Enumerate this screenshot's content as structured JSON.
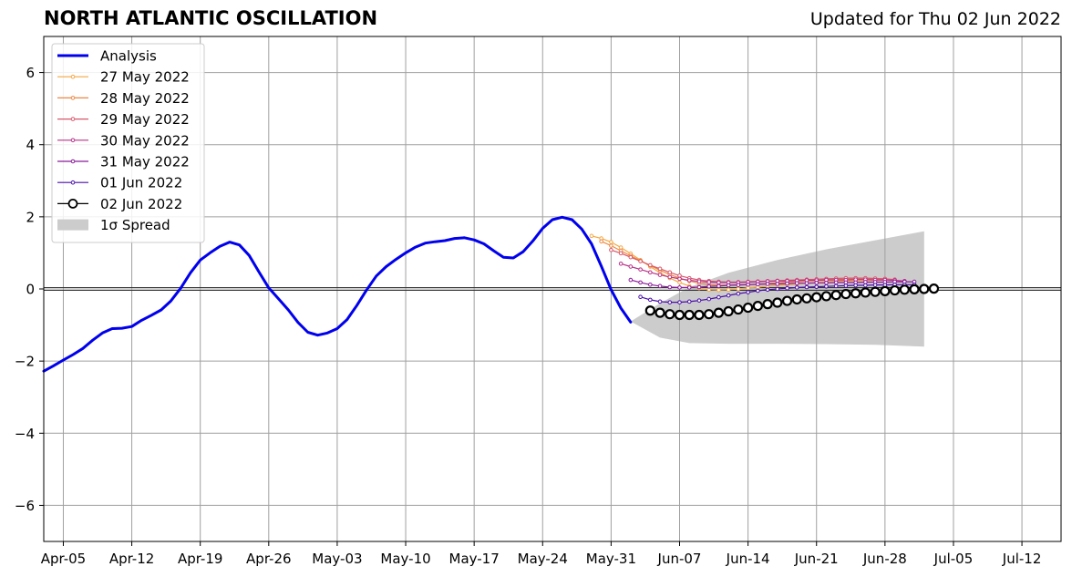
{
  "title": "NORTH ATLANTIC OSCILLATION",
  "updated": "Updated for Thu 02 Jun 2022",
  "chart_data": {
    "type": "line",
    "title": "NORTH ATLANTIC OSCILLATION",
    "subtitle": "Updated for Thu 02 Jun 2022",
    "x_start_date": "2022-04-03",
    "x_ticks": [
      {
        "label": "Apr-05",
        "date": "2022-04-05"
      },
      {
        "label": "Apr-12",
        "date": "2022-04-12"
      },
      {
        "label": "Apr-19",
        "date": "2022-04-19"
      },
      {
        "label": "Apr-26",
        "date": "2022-04-26"
      },
      {
        "label": "May-03",
        "date": "2022-05-03"
      },
      {
        "label": "May-10",
        "date": "2022-05-10"
      },
      {
        "label": "May-17",
        "date": "2022-05-17"
      },
      {
        "label": "May-24",
        "date": "2022-05-24"
      },
      {
        "label": "May-31",
        "date": "2022-05-31"
      },
      {
        "label": "Jun-07",
        "date": "2022-06-07"
      },
      {
        "label": "Jun-14",
        "date": "2022-06-14"
      },
      {
        "label": "Jun-21",
        "date": "2022-06-21"
      },
      {
        "label": "Jun-28",
        "date": "2022-06-28"
      },
      {
        "label": "Jul-05",
        "date": "2022-07-05"
      },
      {
        "label": "Jul-12",
        "date": "2022-07-12"
      }
    ],
    "xlim": [
      "2022-04-03",
      "2022-07-16"
    ],
    "ylim": [
      -7,
      7
    ],
    "y_ticks": [
      {
        "value": -6,
        "label": "−6"
      },
      {
        "value": -4,
        "label": "−4"
      },
      {
        "value": -2,
        "label": "−2"
      },
      {
        "value": 0,
        "label": "0"
      },
      {
        "value": 2,
        "label": "2"
      },
      {
        "value": 4,
        "label": "4"
      },
      {
        "value": 6,
        "label": "6"
      }
    ],
    "grid": true,
    "legend_position": "top-left",
    "spread": {
      "name": "1σ Spread",
      "color": "#cccccc",
      "x": [
        "2022-06-02",
        "2022-06-05",
        "2022-06-08",
        "2022-06-12",
        "2022-06-17",
        "2022-06-22",
        "2022-06-27",
        "2022-07-02"
      ],
      "upper": [
        -0.9,
        -0.4,
        0.05,
        0.45,
        0.8,
        1.1,
        1.35,
        1.6
      ],
      "lower": [
        -0.9,
        -1.35,
        -1.5,
        -1.52,
        -1.52,
        -1.53,
        -1.55,
        -1.6
      ]
    },
    "series": [
      {
        "name": "Analysis",
        "color": "#0000ee",
        "width": 3,
        "marker": "none",
        "x": [
          "2022-04-03",
          "2022-04-04",
          "2022-04-05",
          "2022-04-06",
          "2022-04-07",
          "2022-04-08",
          "2022-04-09",
          "2022-04-10",
          "2022-04-11",
          "2022-04-12",
          "2022-04-13",
          "2022-04-14",
          "2022-04-15",
          "2022-04-16",
          "2022-04-17",
          "2022-04-18",
          "2022-04-19",
          "2022-04-20",
          "2022-04-21",
          "2022-04-22",
          "2022-04-23",
          "2022-04-24",
          "2022-04-25",
          "2022-04-26",
          "2022-04-27",
          "2022-04-28",
          "2022-04-29",
          "2022-04-30",
          "2022-05-01",
          "2022-05-02",
          "2022-05-03",
          "2022-05-04",
          "2022-05-05",
          "2022-05-06",
          "2022-05-07",
          "2022-05-08",
          "2022-05-09",
          "2022-05-10",
          "2022-05-11",
          "2022-05-12",
          "2022-05-13",
          "2022-05-14",
          "2022-05-15",
          "2022-05-16",
          "2022-05-17",
          "2022-05-18",
          "2022-05-19",
          "2022-05-20",
          "2022-05-21",
          "2022-05-22",
          "2022-05-23",
          "2022-05-24",
          "2022-05-25",
          "2022-05-26",
          "2022-05-27",
          "2022-05-28",
          "2022-05-29",
          "2022-05-30",
          "2022-05-31",
          "2022-06-01",
          "2022-06-02"
        ],
        "y": [
          -2.28,
          -2.13,
          -1.97,
          -1.82,
          -1.65,
          -1.42,
          -1.22,
          -1.1,
          -1.09,
          -1.04,
          -0.87,
          -0.73,
          -0.58,
          -0.33,
          0.02,
          0.45,
          0.8,
          1.0,
          1.18,
          1.3,
          1.22,
          0.93,
          0.47,
          0.03,
          -0.27,
          -0.58,
          -0.93,
          -1.2,
          -1.28,
          -1.22,
          -1.1,
          -0.85,
          -0.46,
          -0.03,
          0.36,
          0.62,
          0.82,
          1.0,
          1.16,
          1.27,
          1.31,
          1.34,
          1.4,
          1.42,
          1.36,
          1.25,
          1.06,
          0.88,
          0.86,
          1.03,
          1.33,
          1.68,
          1.92,
          1.99,
          1.92,
          1.66,
          1.25,
          0.63,
          -0.02,
          -0.53,
          -0.92
        ]
      },
      {
        "name": "27 May 2022",
        "color": "#f4a742",
        "width": 1.2,
        "marker": "dot",
        "x": [
          "2022-05-29",
          "2022-05-30",
          "2022-05-31",
          "2022-06-01",
          "2022-06-02",
          "2022-06-03",
          "2022-06-04",
          "2022-06-05",
          "2022-06-06",
          "2022-06-07",
          "2022-06-08",
          "2022-06-09",
          "2022-06-10",
          "2022-06-11",
          "2022-06-12",
          "2022-06-13",
          "2022-06-14",
          "2022-06-15",
          "2022-06-16",
          "2022-06-17",
          "2022-06-18",
          "2022-06-19",
          "2022-06-20",
          "2022-06-21",
          "2022-06-22",
          "2022-06-23",
          "2022-06-24",
          "2022-06-25",
          "2022-06-26",
          "2022-06-27",
          "2022-06-28"
        ],
        "y": [
          1.47,
          1.4,
          1.3,
          1.15,
          0.98,
          0.8,
          0.62,
          0.45,
          0.3,
          0.18,
          0.08,
          0.02,
          -0.02,
          -0.03,
          -0.02,
          0.0,
          0.03,
          0.05,
          0.08,
          0.1,
          0.12,
          0.14,
          0.16,
          0.18,
          0.2,
          0.21,
          0.22,
          0.23,
          0.24,
          0.24,
          0.25
        ]
      },
      {
        "name": "28 May 2022",
        "color": "#ee8743",
        "width": 1.2,
        "marker": "dot",
        "x": [
          "2022-05-30",
          "2022-05-31",
          "2022-06-01",
          "2022-06-02",
          "2022-06-03",
          "2022-06-04",
          "2022-06-05",
          "2022-06-06",
          "2022-06-07",
          "2022-06-08",
          "2022-06-09",
          "2022-06-10",
          "2022-06-11",
          "2022-06-12",
          "2022-06-13",
          "2022-06-14",
          "2022-06-15",
          "2022-06-16",
          "2022-06-17",
          "2022-06-18",
          "2022-06-19",
          "2022-06-20",
          "2022-06-21",
          "2022-06-22",
          "2022-06-23",
          "2022-06-24",
          "2022-06-25",
          "2022-06-26",
          "2022-06-27",
          "2022-06-28"
        ],
        "y": [
          1.32,
          1.2,
          1.06,
          0.92,
          0.78,
          0.65,
          0.52,
          0.4,
          0.3,
          0.22,
          0.16,
          0.12,
          0.1,
          0.1,
          0.11,
          0.12,
          0.13,
          0.15,
          0.17,
          0.19,
          0.2,
          0.22,
          0.23,
          0.25,
          0.26,
          0.27,
          0.28,
          0.28,
          0.28,
          0.27
        ]
      },
      {
        "name": "29 May 2022",
        "color": "#d8576b",
        "width": 1.2,
        "marker": "dot",
        "x": [
          "2022-05-31",
          "2022-06-01",
          "2022-06-02",
          "2022-06-03",
          "2022-06-04",
          "2022-06-05",
          "2022-06-06",
          "2022-06-07",
          "2022-06-08",
          "2022-06-09",
          "2022-06-10",
          "2022-06-11",
          "2022-06-12",
          "2022-06-13",
          "2022-06-14",
          "2022-06-15",
          "2022-06-16",
          "2022-06-17",
          "2022-06-18",
          "2022-06-19",
          "2022-06-20",
          "2022-06-21",
          "2022-06-22",
          "2022-06-23",
          "2022-06-24",
          "2022-06-25",
          "2022-06-26",
          "2022-06-27",
          "2022-06-28",
          "2022-06-29"
        ],
        "y": [
          1.08,
          0.99,
          0.88,
          0.77,
          0.66,
          0.56,
          0.46,
          0.37,
          0.3,
          0.25,
          0.22,
          0.2,
          0.19,
          0.19,
          0.2,
          0.21,
          0.22,
          0.23,
          0.24,
          0.25,
          0.26,
          0.27,
          0.28,
          0.29,
          0.3,
          0.3,
          0.3,
          0.29,
          0.28,
          0.26
        ]
      },
      {
        "name": "30 May 2022",
        "color": "#b83289",
        "width": 1.2,
        "marker": "dot",
        "x": [
          "2022-06-01",
          "2022-06-02",
          "2022-06-03",
          "2022-06-04",
          "2022-06-05",
          "2022-06-06",
          "2022-06-07",
          "2022-06-08",
          "2022-06-09",
          "2022-06-10",
          "2022-06-11",
          "2022-06-12",
          "2022-06-13",
          "2022-06-14",
          "2022-06-15",
          "2022-06-16",
          "2022-06-17",
          "2022-06-18",
          "2022-06-19",
          "2022-06-20",
          "2022-06-21",
          "2022-06-22",
          "2022-06-23",
          "2022-06-24",
          "2022-06-25",
          "2022-06-26",
          "2022-06-27",
          "2022-06-28",
          "2022-06-29",
          "2022-06-30"
        ],
        "y": [
          0.7,
          0.62,
          0.54,
          0.46,
          0.39,
          0.33,
          0.28,
          0.24,
          0.21,
          0.19,
          0.18,
          0.18,
          0.18,
          0.19,
          0.2,
          0.21,
          0.22,
          0.22,
          0.23,
          0.24,
          0.24,
          0.25,
          0.25,
          0.25,
          0.26,
          0.26,
          0.25,
          0.25,
          0.24,
          0.22
        ]
      },
      {
        "name": "31 May 2022",
        "color": "#8b1a9b",
        "width": 1.2,
        "marker": "dot",
        "x": [
          "2022-06-02",
          "2022-06-03",
          "2022-06-04",
          "2022-06-05",
          "2022-06-06",
          "2022-06-07",
          "2022-06-08",
          "2022-06-09",
          "2022-06-10",
          "2022-06-11",
          "2022-06-12",
          "2022-06-13",
          "2022-06-14",
          "2022-06-15",
          "2022-06-16",
          "2022-06-17",
          "2022-06-18",
          "2022-06-19",
          "2022-06-20",
          "2022-06-21",
          "2022-06-22",
          "2022-06-23",
          "2022-06-24",
          "2022-06-25",
          "2022-06-26",
          "2022-06-27",
          "2022-06-28",
          "2022-06-29",
          "2022-06-30",
          "2022-07-01"
        ],
        "y": [
          0.25,
          0.18,
          0.12,
          0.08,
          0.05,
          0.04,
          0.04,
          0.05,
          0.07,
          0.08,
          0.1,
          0.11,
          0.12,
          0.13,
          0.14,
          0.14,
          0.15,
          0.16,
          0.16,
          0.17,
          0.17,
          0.18,
          0.18,
          0.18,
          0.19,
          0.19,
          0.19,
          0.2,
          0.2,
          0.2
        ]
      },
      {
        "name": "01 Jun 2022",
        "color": "#4a0fa8",
        "width": 1.2,
        "marker": "dot",
        "x": [
          "2022-06-03",
          "2022-06-04",
          "2022-06-05",
          "2022-06-06",
          "2022-06-07",
          "2022-06-08",
          "2022-06-09",
          "2022-06-10",
          "2022-06-11",
          "2022-06-12",
          "2022-06-13",
          "2022-06-14",
          "2022-06-15",
          "2022-06-16",
          "2022-06-17",
          "2022-06-18",
          "2022-06-19",
          "2022-06-20",
          "2022-06-21",
          "2022-06-22",
          "2022-06-23",
          "2022-06-24",
          "2022-06-25",
          "2022-06-26",
          "2022-06-27",
          "2022-06-28",
          "2022-06-29",
          "2022-06-30",
          "2022-07-01"
        ],
        "y": [
          -0.22,
          -0.3,
          -0.35,
          -0.37,
          -0.37,
          -0.35,
          -0.32,
          -0.28,
          -0.23,
          -0.18,
          -0.13,
          -0.09,
          -0.05,
          -0.02,
          0.0,
          0.02,
          0.04,
          0.05,
          0.06,
          0.07,
          0.08,
          0.09,
          0.1,
          0.1,
          0.11,
          0.11,
          0.12,
          0.12,
          0.12
        ]
      },
      {
        "name": "02 Jun 2022",
        "color": "#000000",
        "width": 1.5,
        "marker": "circle",
        "x": [
          "2022-06-04",
          "2022-06-05",
          "2022-06-06",
          "2022-06-07",
          "2022-06-08",
          "2022-06-09",
          "2022-06-10",
          "2022-06-11",
          "2022-06-12",
          "2022-06-13",
          "2022-06-14",
          "2022-06-15",
          "2022-06-16",
          "2022-06-17",
          "2022-06-18",
          "2022-06-19",
          "2022-06-20",
          "2022-06-21",
          "2022-06-22",
          "2022-06-23",
          "2022-06-24",
          "2022-06-25",
          "2022-06-26",
          "2022-06-27",
          "2022-06-28",
          "2022-06-29",
          "2022-06-30",
          "2022-07-01",
          "2022-07-02",
          "2022-07-03"
        ],
        "y": [
          -0.6,
          -0.66,
          -0.7,
          -0.72,
          -0.72,
          -0.72,
          -0.7,
          -0.66,
          -0.62,
          -0.57,
          -0.52,
          -0.47,
          -0.42,
          -0.38,
          -0.33,
          -0.29,
          -0.26,
          -0.23,
          -0.2,
          -0.17,
          -0.14,
          -0.12,
          -0.1,
          -0.08,
          -0.06,
          -0.04,
          -0.02,
          -0.01,
          0.0,
          0.01
        ]
      }
    ]
  }
}
